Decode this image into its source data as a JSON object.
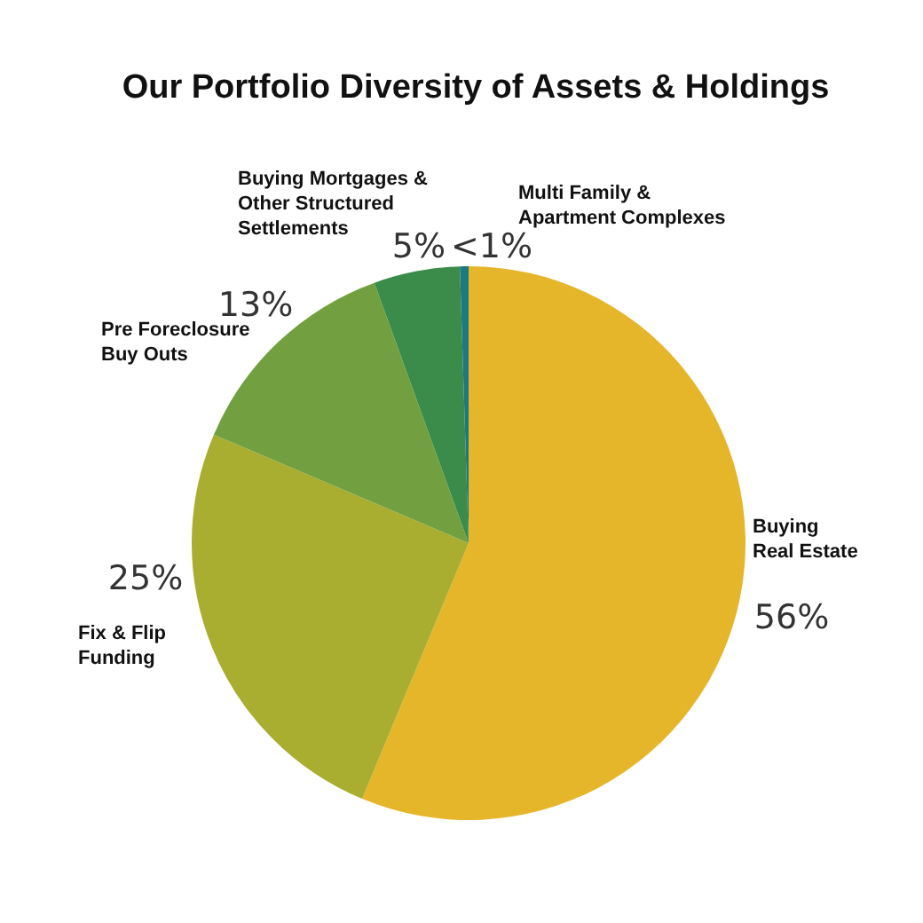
{
  "chart_data": {
    "type": "pie",
    "title": "Our Portfolio Diversity of Assets & Holdings",
    "categories": [
      "Buying Real Estate",
      "Fix & Flip Funding",
      "Pre Foreclosure Buy Outs",
      "Buying Mortgages & Other Structured Settlements",
      "Multi Family & Apartment Complexes"
    ],
    "values": [
      56,
      25,
      13,
      5,
      0.5
    ],
    "value_labels": [
      "56%",
      "25%",
      "13%",
      "5%",
      "<1%"
    ],
    "colors": [
      "#e6b62a",
      "#a9ad30",
      "#72a040",
      "#3b8c4a",
      "#1a7a80"
    ],
    "legend": false
  }
}
